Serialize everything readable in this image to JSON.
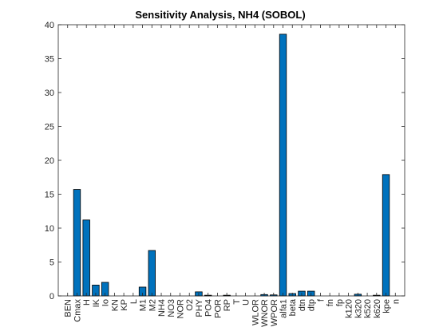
{
  "chart_data": {
    "type": "bar",
    "title": "Sensitivity Analysis, NH4 (SOBOL)",
    "xlabel": "",
    "ylabel": "",
    "ylim": [
      0,
      40
    ],
    "yticks": [
      0,
      5,
      10,
      15,
      20,
      25,
      30,
      35,
      40
    ],
    "grid": false,
    "bar_color": "#0072bd",
    "categories": [
      "BEN",
      "Cmax",
      "H",
      "IK",
      "Io",
      "KN",
      "KP",
      "L",
      "M1",
      "M2",
      "NH4",
      "NO3",
      "NOR",
      "O2",
      "PHY",
      "PO4",
      "POR",
      "RP",
      "T",
      "U",
      "WLOR",
      "WNOR",
      "WPOR",
      "alfa1",
      "beta",
      "dtn",
      "dtp",
      "f",
      "fn",
      "fp",
      "k120",
      "k320",
      "k520",
      "k620",
      "kpe",
      "n"
    ],
    "values": [
      0,
      15.7,
      11.2,
      1.6,
      2.0,
      0,
      0,
      0,
      1.3,
      6.7,
      0,
      0,
      0,
      0,
      0.6,
      0.1,
      0,
      0.1,
      0,
      0,
      0,
      0.2,
      0.15,
      38.6,
      0.35,
      0.7,
      0.7,
      0,
      0,
      0,
      0,
      0.25,
      0,
      0.1,
      17.9,
      0
    ]
  }
}
